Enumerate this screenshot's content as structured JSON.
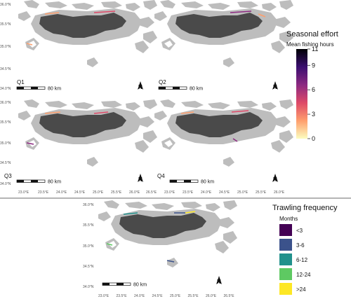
{
  "panels": {
    "labels": [
      "Q1",
      "Q2",
      "Q3",
      "Q4"
    ],
    "scale_text": "80 km",
    "north_label": "N",
    "lat_ticks": [
      "36.0°N",
      "35.5°N",
      "35.0°N",
      "34.5°N",
      "34.0°N"
    ],
    "lon_ticks": [
      "23.0°E",
      "23.5°E",
      "24.0°E",
      "24.5°E",
      "25.0°E",
      "25.5°E",
      "26.0°E",
      "26.5°E"
    ]
  },
  "legend_effort": {
    "title": "Seasonal effort",
    "subtitle": "Mean fishing hours",
    "ticks": [
      "11",
      "9",
      "6",
      "3",
      "0"
    ],
    "tick_values": [
      11,
      9,
      6,
      3,
      0
    ],
    "max": 11,
    "gradient_top_to_bottom": [
      "#000004",
      "#3b0f70",
      "#8c2981",
      "#de4968",
      "#fe9f6d",
      "#fcfdbf"
    ]
  },
  "legend_frequency": {
    "title": "Trawling frequency",
    "subtitle": "Months",
    "items": [
      {
        "label": "<3",
        "color": "#440154"
      },
      {
        "label": "3-6",
        "color": "#3b528b"
      },
      {
        "label": "6-12",
        "color": "#21918c"
      },
      {
        "label": "12-24",
        "color": "#5ec962"
      },
      {
        "label": ">24",
        "color": "#fde725"
      }
    ]
  },
  "colors": {
    "land": "#4a4a4a",
    "islands": "#bdbdbd",
    "divider": "#888888"
  }
}
